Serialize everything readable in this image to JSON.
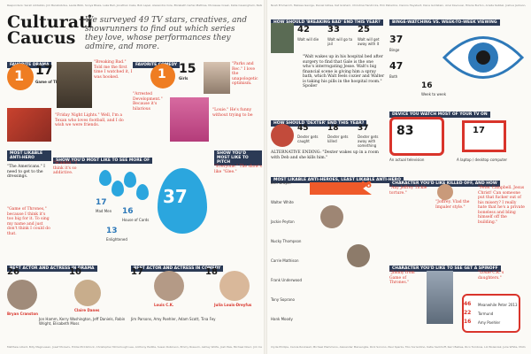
{
  "topbar": {
    "left": "Responders: Sarah Addabbo, Jim Barabobdus, Leslie Bibb, Sonya Blaze, Lake Bell, Jonathan Cake, Bob Lapel, Alexandra Cole, Elizabeth Carter-Mathias, Moniesse Creek, Katie Cassingham, Natalie Darmon, Colley Dobbs",
    "right": "Noah Emmerich, Melissa George, Daniel Gillies, Kat Graham, Christina Hendricks, Erik Palladino, Dennis Haysbert, Dana Goldstein, Ariel Kavoussi, Hilarie Burton, Arielle Kebbel, Joshua Jackson, Anna Kendrick, Rosa Salazar, Kevin Coles, Tim Omundson"
  },
  "left_page": {
    "title": "Culturati Caucus",
    "intro": "We surveyed 49 TV stars, creatives, and showrunners to find out which series they love, whose performances they admire, and more.",
    "fav_drama": {
      "header": "Favorite Drama",
      "rank": "1",
      "pct": "17",
      "show": "Game of Thrones",
      "quotes": [
        "\"Breaking Bad.\" Told me the first time I watched it, I was hooked.",
        "\"Friday Night Lights.\" Well, I'm a Texan who loves football, and I do wish we were friends."
      ]
    },
    "fav_comedy": {
      "header": "Favorite Comedy",
      "rank": "1",
      "pct": "15",
      "show": "Girls",
      "quotes": [
        "\"Arrested Development.\" Because it's hilarious",
        "\"Louie.\" He's funny without trying to be",
        "\"Parks and Rec.\" I love the unapologetic optimism."
      ]
    },
    "anti_hero": {
      "header": "Most Likable Anti-Hero",
      "quotes": [
        "\"The Americans.\" I need to get to the dressings.",
        "\"Game of Thrones,\" because I think it's too big for it. To sing my name and just don't think I could do that."
      ]
    },
    "see_more": {
      "header": "Show You'd Most Like to See More Of",
      "stats": [
        "17",
        "16",
        "13"
      ],
      "stat_labels": [
        "Mad Men",
        "House of Cards",
        "Enlightened"
      ],
      "big": "37"
    },
    "one_show": {
      "header": "Show You'd Most Like to Pitch",
      "quotes": [
        "\"Everyone.\" The show's like \"Glee.\"",
        "\"Scandal.\" I think it's so addictive."
      ]
    },
    "best_drama": {
      "header": "Best Actor and Actress in Drama",
      "actor_pct": "26",
      "actor_name": "Bryan Cranston",
      "actress_pct": "10",
      "actress_name": "Claire Danes",
      "names": [
        "Jon Hamm",
        "Kerry Washington",
        "Jeff Daniels",
        "Robin Wright",
        "Elisabeth Moss"
      ]
    },
    "best_comedy": {
      "header": "Best Actor and Actress in Comedy",
      "actor_pct": "17",
      "actor_name": "Louis C.K.",
      "actress_pct": "18",
      "actress_name": "Julia Louis-Dreyfus",
      "names": [
        "Jim Parsons",
        "Amy Poehler",
        "Adam Scott",
        "Tina Fey"
      ]
    },
    "footer": "Matthew Lillard, Billy Magnussen, Josef Moraviv, Eddie McClintock, Christopher McCullough Lee, Anthony Padilla, Susan Rubinson, Emmy Rossum, Ashley Wolfe, Josh Pais, Michael Nouri, Jim Caviezel"
  },
  "right_page": {
    "breaking_bad": {
      "header": "How Should 'Breaking Bad' End This Year?",
      "stats": [
        "42",
        "33",
        "25"
      ],
      "labels": [
        "Walt will die",
        "Walt will go to jail",
        "Walt will get away with it"
      ],
      "quote": "\"Walt wakes up in his hospital bed after surgery to find that Gale is the one who's interrogating Jesse. Walt's big financial scene is giving him a spray bath, which Walt feels cozier and Walter is taking his pills in the hospital room.\" Spoiler"
    },
    "dexter": {
      "header": "How Should 'Dexter' End This Year?",
      "stats": [
        "45",
        "18",
        "37"
      ],
      "labels": [
        "Dexter gets caught",
        "Dexter gets killed",
        "Dexter gets away with something"
      ],
      "quote": "ALTERNATIVE ENDING: \"Dexter wakes up in a room with Deb and she kills him.\""
    },
    "binge": {
      "header": "Binge-Watching vs. Week-to-Week Viewing",
      "binge_pct": "37",
      "binge_label": "Binge",
      "both_pct": "47",
      "both_label": "Both",
      "week_pct": "16",
      "week_label": "Week to week"
    },
    "device": {
      "header": "Device You Watch Most of Your TV On",
      "tv_pct": "83",
      "tv_label": "An actual television",
      "laptop_pct": "17",
      "laptop_label": "A laptop / desktop computer"
    },
    "likable": {
      "header": "Most Likable Anti-Heroes, Least Likable Anti-Hero",
      "rows": [
        "Don Draper",
        "Walter White",
        "Jackie Peyton",
        "Nucky Thompson",
        "Carrie Mathison",
        "Frank Underwood",
        "Tony Soprano",
        "Hank Moody"
      ],
      "top_pct": "46"
    },
    "kill": {
      "header": "Character You'd Like Killed Off, and How",
      "quotes": [
        "\"Any Jeffrey Tickle torture.\"",
        "\"Joffrey. Vlad the Impaler style.\"",
        "\"Peter Campbell. Jesus Christ! Can someone put that fucker out of his misery? I really hate that he's a private boneless and bling himself off the building.\""
      ]
    },
    "spinoff": {
      "header": "Character You'd Like to See Get a Spinoff",
      "quotes": [
        "\"Jiminy from Game of Thrones.\"",
        "\"Louie C.K.'s daughters.\""
      ],
      "percentages": [
        "46",
        "22",
        "16"
      ],
      "labels": [
        "Meanwhile Peter 2013",
        "Tormund",
        "Amy Poehler"
      ]
    },
    "footer": "Clyde Phillips, Carole Rookwell, Michael Plemmons, Alexander Marsenglia, Rick Sorvino, Paul Sparks, Tiko Sorrentino, Katie Sackhoff, Kerri Bellies, Rico Turnbow, Liz Wolenzak, Julie White, Michael K. Williams, Philip Winchester"
  }
}
